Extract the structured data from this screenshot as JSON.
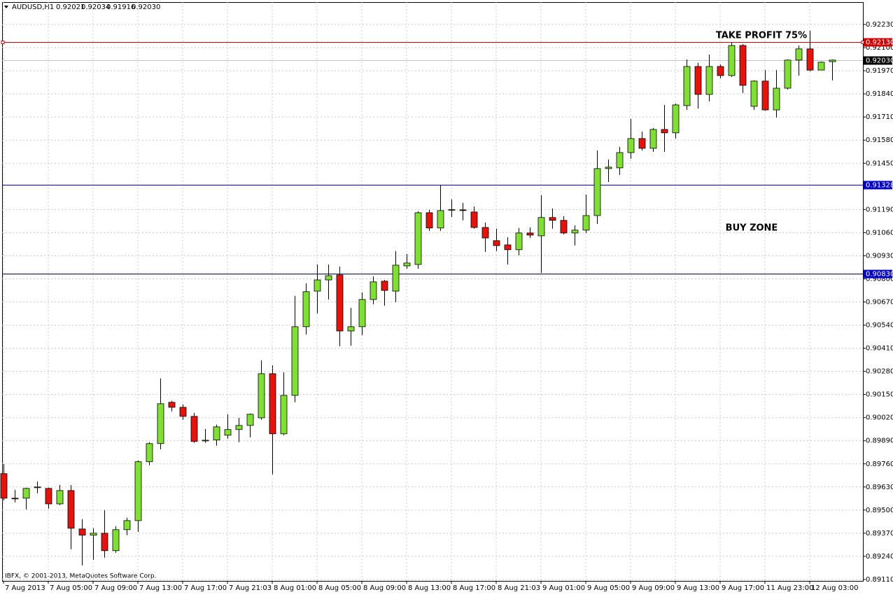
{
  "header": {
    "symbol": "AUDUSD,H1",
    "ohlc": [
      "0.92021",
      "0.92034",
      "0.91916",
      "0.92030"
    ],
    "copyright": "IBFX, © 2001-2013, MetaQuotes Software Corp."
  },
  "chart_data": {
    "type": "candlestick",
    "categories": [
      "7 Aug 2013",
      null,
      null,
      null,
      "7 Aug 05:00",
      null,
      null,
      null,
      "7 Aug 09:00",
      null,
      null,
      null,
      "7 Aug 13:00",
      null,
      null,
      null,
      "7 Aug 17:00",
      null,
      null,
      null,
      "7 Aug 21:03",
      null,
      null,
      null,
      "8 Aug 01:00",
      null,
      null,
      null,
      "8 Aug 05:00",
      null,
      null,
      null,
      "8 Aug 09:00",
      null,
      null,
      null,
      "8 Aug 13:00",
      null,
      null,
      null,
      "8 Aug 17:00",
      null,
      null,
      null,
      "8 Aug 21:03",
      null,
      null,
      null,
      "9 Aug 01:00",
      null,
      null,
      null,
      "9 Aug 05:00",
      null,
      null,
      null,
      "9 Aug 09:00",
      null,
      null,
      null,
      "9 Aug 13:00",
      null,
      null,
      null,
      "9 Aug 17:00",
      null,
      null,
      null,
      "11 Aug 23:00",
      null,
      null,
      null,
      "12 Aug 03:00",
      null,
      null
    ],
    "open": [
      0.89705,
      0.89567,
      0.89567,
      0.89626,
      0.89622,
      0.89535,
      0.8961,
      0.89394,
      0.89359,
      0.8937,
      0.89272,
      0.8939,
      0.89441,
      0.89772,
      0.89874,
      0.90106,
      0.90078,
      0.90027,
      0.8989,
      0.89894,
      0.89921,
      0.89953,
      0.89976,
      0.90019,
      0.90267,
      0.89929,
      0.90145,
      0.90531,
      0.90731,
      0.90794,
      0.90822,
      0.90507,
      0.90531,
      0.90684,
      0.90787,
      0.90731,
      0.90873,
      0.90881,
      0.91172,
      0.91086,
      0.91188,
      0.91188,
      0.91176,
      0.91089,
      0.91015,
      0.90991,
      0.90964,
      0.91058,
      0.91042,
      0.91145,
      0.91129,
      0.91058,
      0.91074,
      0.91156,
      0.9142,
      0.91424,
      0.9151,
      0.91589,
      0.91534,
      0.9164,
      0.91621,
      0.91774,
      0.91994,
      0.91837,
      0.91994,
      0.91943,
      0.92112,
      0.9177,
      0.91912,
      0.9175,
      0.91872,
      0.9203,
      0.92093,
      0.91974,
      0.92021
    ],
    "high": [
      0.8976,
      0.89614,
      0.89626,
      0.89661,
      0.89626,
      0.89641,
      0.89641,
      0.89449,
      0.89398,
      0.895,
      0.8941,
      0.89457,
      0.89779,
      0.89882,
      0.9024,
      0.90114,
      0.90094,
      0.90047,
      0.89956,
      0.8998,
      0.90039,
      0.90019,
      0.90043,
      0.90342,
      0.90314,
      0.90275,
      0.90704,
      0.90775,
      0.90881,
      0.90881,
      0.90869,
      0.90637,
      0.90724,
      0.90814,
      0.90794,
      0.90956,
      0.9094,
      0.9118,
      0.91188,
      0.91325,
      0.91247,
      0.91227,
      0.91207,
      0.91117,
      0.91082,
      0.91034,
      0.91086,
      0.91089,
      0.9127,
      0.91196,
      0.91152,
      0.91101,
      0.91274,
      0.91522,
      0.91471,
      0.91542,
      0.91699,
      0.91628,
      0.91648,
      0.91778,
      0.91786,
      0.92034,
      0.92014,
      0.92061,
      0.92006,
      0.92132,
      0.9212,
      0.91916,
      0.91974,
      0.91974,
      0.92034,
      0.92112,
      0.92195,
      0.92022,
      0.92034
    ],
    "low": [
      0.89555,
      0.89543,
      0.89504,
      0.89595,
      0.89508,
      0.89528,
      0.8928,
      0.89189,
      0.89221,
      0.89233,
      0.8926,
      0.89359,
      0.89378,
      0.89752,
      0.89842,
      0.90055,
      0.90008,
      0.89878,
      0.89878,
      0.89862,
      0.89901,
      0.89882,
      0.89909,
      0.90008,
      0.89701,
      0.89921,
      0.90106,
      0.90488,
      0.90606,
      0.90684,
      0.90421,
      0.90425,
      0.90484,
      0.90657,
      0.90649,
      0.90669,
      0.90857,
      0.90857,
      0.9107,
      0.9107,
      0.91148,
      0.91129,
      0.91082,
      0.90952,
      0.90956,
      0.90881,
      0.90932,
      0.9103,
      0.90834,
      0.91082,
      0.9105,
      0.90987,
      0.91058,
      0.91109,
      0.91345,
      0.91384,
      0.91475,
      0.91522,
      0.91514,
      0.91514,
      0.91589,
      0.9175,
      0.91758,
      0.91798,
      0.91927,
      0.91935,
      0.91845,
      0.9175,
      0.91746,
      0.91707,
      0.91864,
      0.91943,
      0.91967,
      0.91974,
      0.91916
    ],
    "close": [
      0.89567,
      0.89563,
      0.89622,
      0.8963,
      0.89535,
      0.8961,
      0.89398,
      0.89359,
      0.8937,
      0.89272,
      0.8939,
      0.89441,
      0.89772,
      0.89874,
      0.90098,
      0.90078,
      0.90027,
      0.89886,
      0.89893,
      0.89968,
      0.89953,
      0.89976,
      0.90039,
      0.90267,
      0.89929,
      0.90145,
      0.90531,
      0.90728,
      0.90794,
      0.90818,
      0.90507,
      0.90531,
      0.90684,
      0.90783,
      0.90735,
      0.90877,
      0.90889,
      0.91172,
      0.91086,
      0.91184,
      0.9119,
      0.91186,
      0.91089,
      0.9103,
      0.90987,
      0.90964,
      0.91058,
      0.91046,
      0.91145,
      0.91129,
      0.91058,
      0.91074,
      0.91156,
      0.9142,
      0.91428,
      0.9151,
      0.91589,
      0.91534,
      0.9164,
      0.91621,
      0.91778,
      0.91994,
      0.91837,
      0.91994,
      0.91943,
      0.92112,
      0.91888,
      0.91912,
      0.9175,
      0.91872,
      0.9203,
      0.92093,
      0.91974,
      0.92018,
      0.9203
    ],
    "bull_color": "#7fe030",
    "bear_color": "#e8120c",
    "ylim": [
      0.89102,
      0.92356
    ],
    "yticks": [
      {
        "value": 0.9223,
        "label": "0.92230"
      },
      {
        "value": 0.921,
        "label": "0.92100"
      },
      {
        "value": 0.9197,
        "label": "0.91970"
      },
      {
        "value": 0.9184,
        "label": "0.91840"
      },
      {
        "value": 0.9171,
        "label": "0.91710"
      },
      {
        "value": 0.9158,
        "label": "0.91580"
      },
      {
        "value": 0.9145,
        "label": "0.91450"
      },
      {
        "value": 0.9119,
        "label": "0.91190"
      },
      {
        "value": 0.9106,
        "label": "0.91060"
      },
      {
        "value": 0.9093,
        "label": "0.90930"
      },
      {
        "value": 0.908,
        "label": "0.90800"
      },
      {
        "value": 0.9067,
        "label": "0.90670"
      },
      {
        "value": 0.9054,
        "label": "0.90540"
      },
      {
        "value": 0.9041,
        "label": "0.90410"
      },
      {
        "value": 0.9028,
        "label": "0.90280"
      },
      {
        "value": 0.9015,
        "label": "0.90150"
      },
      {
        "value": 0.9002,
        "label": "0.90020"
      },
      {
        "value": 0.8989,
        "label": "0.89890"
      },
      {
        "value": 0.8976,
        "label": "0.89760"
      },
      {
        "value": 0.8963,
        "label": "0.89630"
      },
      {
        "value": 0.895,
        "label": "0.89500"
      },
      {
        "value": 0.8937,
        "label": "0.89370"
      },
      {
        "value": 0.8924,
        "label": "0.89240"
      },
      {
        "value": 0.8911,
        "label": "0.89110"
      }
    ],
    "grid": true,
    "levels": [
      {
        "value": 0.9213,
        "label": "0.92130",
        "color": "#d00000"
      },
      {
        "value": 0.9203,
        "label": "0.92030",
        "color": "#000000"
      },
      {
        "value": 0.91328,
        "label": "0.91328",
        "color": "#0000c8"
      },
      {
        "value": 0.9083,
        "label": "0.90830",
        "color": "#0000c8"
      }
    ],
    "annotations": [
      "TAKE PROFIT 75%",
      "BUY ZONE"
    ]
  }
}
